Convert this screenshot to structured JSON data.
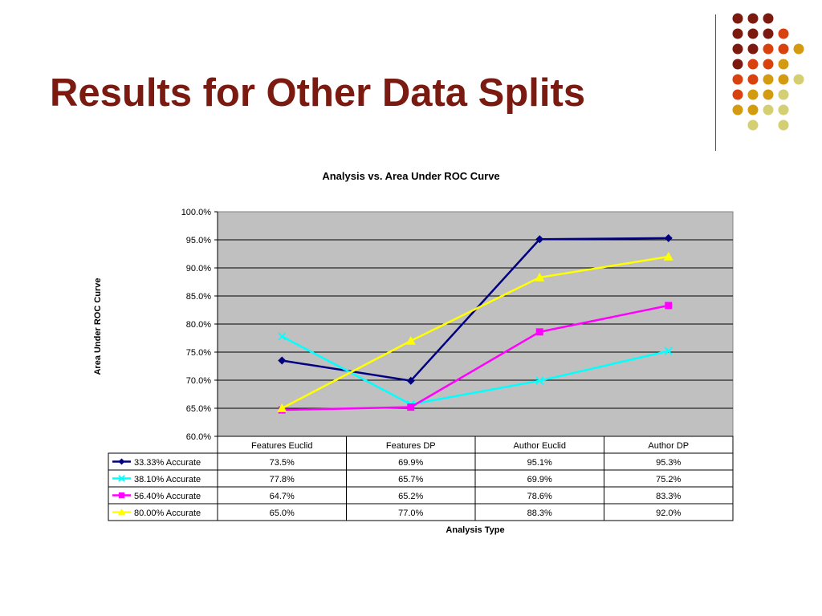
{
  "slide": {
    "title": "Results for Other Data Splits"
  },
  "decor": {
    "dot_colors": {
      "maroon": "#7d1a10",
      "orange": "#d9410f",
      "gold": "#d49a10",
      "khaki": "#d3cf72"
    }
  },
  "chart_data": {
    "type": "line",
    "title": "Analysis vs. Area Under ROC Curve",
    "xlabel": "Analysis Type",
    "ylabel": "Area Under ROC Curve",
    "categories": [
      "Features Euclid",
      "Features DP",
      "Author Euclid",
      "Author DP"
    ],
    "ylim": [
      0.6,
      1.0
    ],
    "yticks": [
      "60.0%",
      "65.0%",
      "70.0%",
      "75.0%",
      "80.0%",
      "85.0%",
      "90.0%",
      "95.0%",
      "100.0%"
    ],
    "grid": true,
    "plot_background": "#c0c0c0",
    "legend": "data-table",
    "series": [
      {
        "name": "33.33% Accurate",
        "color": "#000080",
        "marker": "diamond",
        "values": [
          0.735,
          0.699,
          0.951,
          0.953
        ],
        "labels": [
          "73.5%",
          "69.9%",
          "95.1%",
          "95.3%"
        ]
      },
      {
        "name": "38.10% Accurate",
        "color": "#00ffff",
        "marker": "x",
        "values": [
          0.778,
          0.657,
          0.699,
          0.752
        ],
        "labels": [
          "77.8%",
          "65.7%",
          "69.9%",
          "75.2%"
        ]
      },
      {
        "name": "56.40% Accurate",
        "color": "#ff00ff",
        "marker": "square",
        "values": [
          0.647,
          0.652,
          0.786,
          0.833
        ],
        "labels": [
          "64.7%",
          "65.2%",
          "78.6%",
          "83.3%"
        ]
      },
      {
        "name": "80.00% Accurate",
        "color": "#ffff00",
        "marker": "triangle",
        "values": [
          0.65,
          0.77,
          0.883,
          0.92
        ],
        "labels": [
          "65.0%",
          "77.0%",
          "88.3%",
          "92.0%"
        ]
      }
    ]
  }
}
